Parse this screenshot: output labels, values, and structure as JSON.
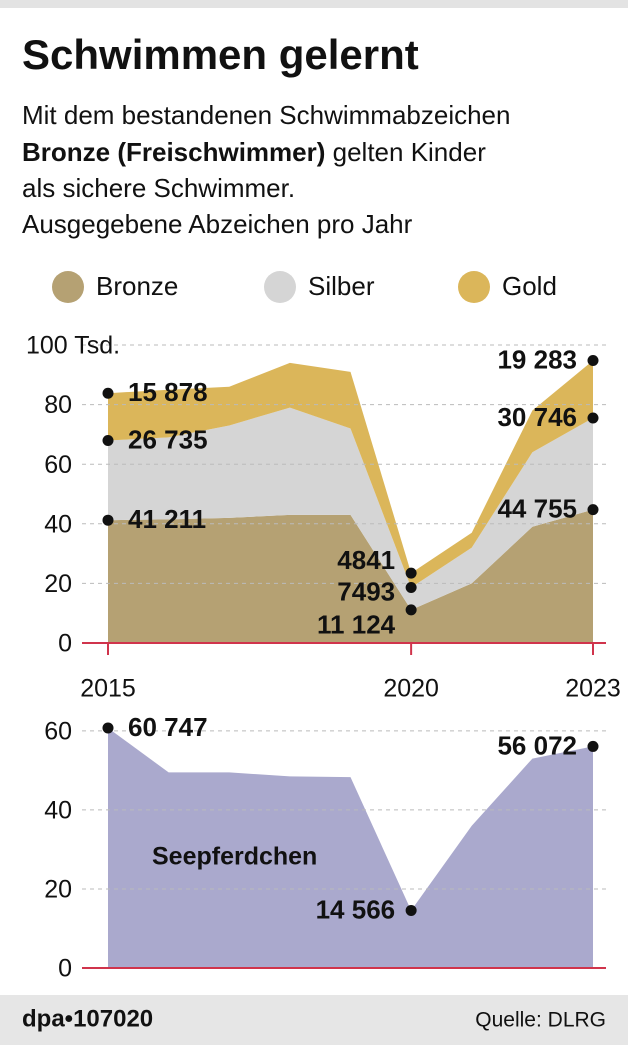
{
  "title": "Schwimmen gelernt",
  "subtitle": [
    "Mit dem bestandenen Schwimmabzeichen",
    "Bronze (Freischwimmer)",
    " gelten Kinder",
    "als sichere Schwimmer.",
    "Ausgegebene Abzeichen pro Jahr"
  ],
  "footer": {
    "id": "dpa•107020",
    "source": "Quelle: DLRG"
  },
  "chart_data": [
    {
      "type": "area",
      "stacked": true,
      "grid": true,
      "x": [
        2015,
        2016,
        2017,
        2018,
        2019,
        2020,
        2021,
        2022,
        2023
      ],
      "xlim": [
        2015,
        2023
      ],
      "xticks": [
        2015,
        2020,
        2023
      ],
      "ylim": [
        0,
        100
      ],
      "yticks": [
        0,
        20,
        40,
        60,
        80,
        {
          "value": 100,
          "label": "100 Tsd."
        }
      ],
      "series": [
        {
          "name": "Bronze",
          "color": "#b5a173",
          "values": [
            41.211,
            41.5,
            42,
            43,
            43,
            11.124,
            20,
            39,
            44.755
          ],
          "value_labels": [
            "41 211",
            null,
            null,
            null,
            null,
            "11 124",
            null,
            null,
            "44 755"
          ]
        },
        {
          "name": "Silber",
          "color": "#d5d5d5",
          "values": [
            26.735,
            27.5,
            31,
            36,
            29,
            7.493,
            12,
            25,
            30.746
          ],
          "value_labels": [
            "26 735",
            null,
            null,
            null,
            null,
            "7493",
            null,
            null,
            "30 746"
          ]
        },
        {
          "name": "Gold",
          "color": "#dbb65a",
          "values": [
            15.878,
            16,
            13,
            15,
            19,
            4.841,
            5,
            14,
            19.283
          ],
          "value_labels": [
            "15 878",
            null,
            null,
            null,
            null,
            "4841",
            null,
            null,
            "19 283"
          ]
        }
      ]
    },
    {
      "type": "area",
      "grid": true,
      "x": [
        2015,
        2016,
        2017,
        2018,
        2019,
        2020,
        2021,
        2022,
        2023
      ],
      "xlim": [
        2015,
        2023
      ],
      "ylim": [
        0,
        62
      ],
      "yticks": [
        0,
        20,
        40,
        60
      ],
      "series": [
        {
          "name": "Seepferdchen",
          "color": "#aaa9cd",
          "values": [
            60.747,
            49.5,
            49.5,
            48.5,
            48.3,
            14.566,
            36,
            53,
            56.072
          ],
          "value_labels": [
            "60 747",
            null,
            null,
            null,
            null,
            "14 566",
            null,
            null,
            "56 072"
          ]
        }
      ]
    }
  ]
}
